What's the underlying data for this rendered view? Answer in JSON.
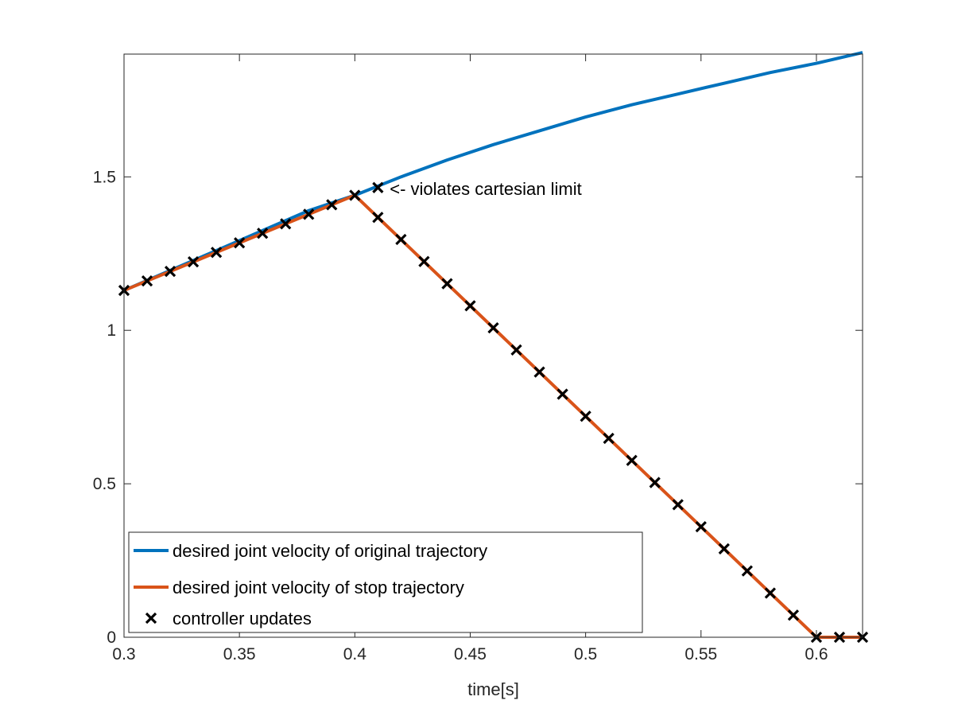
{
  "chart_data": {
    "type": "line",
    "title": "",
    "xlabel": "time[s]",
    "ylabel": "",
    "xlim": [
      0.3,
      0.62
    ],
    "ylim": [
      0,
      1.9
    ],
    "grid": false,
    "legend_placement": "bottom-left",
    "x_ticks": [
      0.3,
      0.35,
      0.4,
      0.45,
      0.5,
      0.55,
      0.6
    ],
    "x_tick_labels": [
      "0.3",
      "0.35",
      "0.4",
      "0.45",
      "0.5",
      "0.55",
      "0.6"
    ],
    "y_ticks": [
      0,
      0.5,
      1,
      1.5
    ],
    "y_tick_labels": [
      "0",
      "0.5",
      "1",
      "1.5"
    ],
    "series": [
      {
        "name": "desired joint velocity of original trajectory",
        "kind": "line",
        "color": "#0072BD",
        "x": [
          0.3,
          0.32,
          0.34,
          0.36,
          0.38,
          0.4,
          0.42,
          0.44,
          0.46,
          0.48,
          0.5,
          0.52,
          0.54,
          0.56,
          0.58,
          0.6,
          0.62
        ],
        "y": [
          1.13,
          1.195,
          1.26,
          1.325,
          1.39,
          1.44,
          1.5,
          1.555,
          1.605,
          1.65,
          1.695,
          1.735,
          1.77,
          1.805,
          1.84,
          1.87,
          1.905
        ]
      },
      {
        "name": "desired joint velocity of stop trajectory",
        "kind": "line",
        "color": "#D95319",
        "x": [
          0.3,
          0.4,
          0.6,
          0.62
        ],
        "y": [
          1.13,
          1.44,
          0,
          0
        ]
      },
      {
        "name": "controller updates",
        "kind": "marker",
        "color": "#000000",
        "x": [
          0.3,
          0.31,
          0.32,
          0.33,
          0.34,
          0.35,
          0.36,
          0.37,
          0.38,
          0.39,
          0.4,
          0.41,
          0.41,
          0.42,
          0.43,
          0.44,
          0.45,
          0.46,
          0.47,
          0.48,
          0.49,
          0.5,
          0.51,
          0.52,
          0.53,
          0.54,
          0.55,
          0.56,
          0.57,
          0.58,
          0.59,
          0.6,
          0.61,
          0.62
        ],
        "y": [
          1.13,
          1.161,
          1.192,
          1.223,
          1.254,
          1.285,
          1.316,
          1.347,
          1.378,
          1.409,
          1.44,
          1.465,
          1.368,
          1.296,
          1.224,
          1.152,
          1.08,
          1.008,
          0.936,
          0.864,
          0.792,
          0.72,
          0.648,
          0.576,
          0.504,
          0.432,
          0.36,
          0.288,
          0.216,
          0.144,
          0.072,
          0,
          0,
          0
        ]
      }
    ],
    "annotations": [
      {
        "text": "<- violates cartesian limit",
        "x": 0.411,
        "y": 1.465
      }
    ]
  }
}
